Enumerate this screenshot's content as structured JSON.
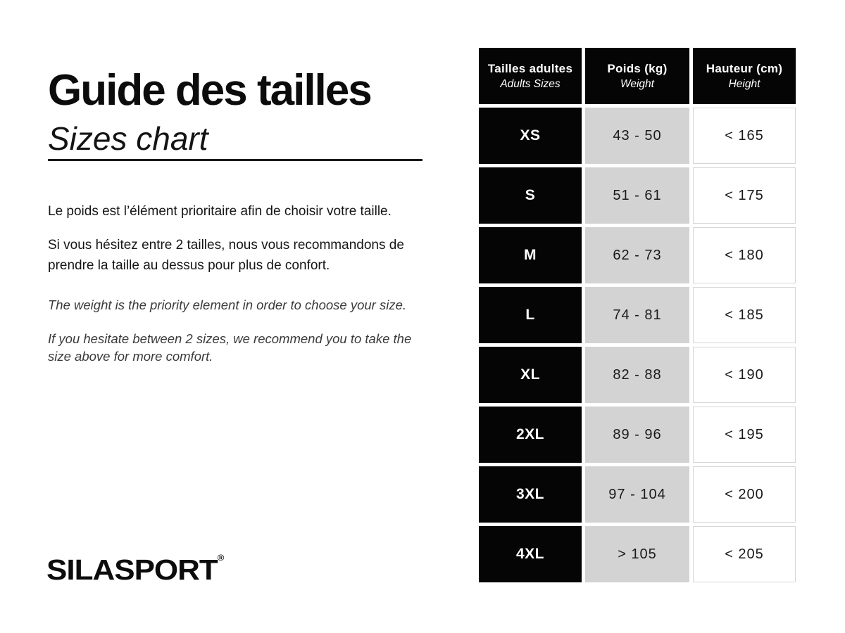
{
  "page": {
    "title_fr": "Guide des tailles",
    "title_en": "Sizes chart",
    "paragraph_fr_1": "Le poids est l’élément prioritaire afin de choisir votre taille.",
    "paragraph_fr_2": "Si vous hésitez entre 2 tailles, nous vous recommandons de prendre la taille au dessus pour plus de confort.",
    "paragraph_en_1": "The weight is the priority element in order to choose your size.",
    "paragraph_en_2": "If you hesitate between 2 sizes, we recommend you to take the size above for more comfort.",
    "logo_text": "SILASPORT",
    "logo_mark": "®"
  },
  "colors": {
    "cell_black": "#050505",
    "cell_gray": "#d3d3d3",
    "cell_border": "#d6d6d6",
    "text_dark": "#111111"
  },
  "table": {
    "headers": [
      {
        "fr": "Tailles adultes",
        "en": "Adults Sizes"
      },
      {
        "fr": "Poids (kg)",
        "en": "Weight"
      },
      {
        "fr": "Hauteur (cm)",
        "en": "Height"
      }
    ],
    "rows": [
      {
        "size": "XS",
        "weight": "43 - 50",
        "height": "< 165"
      },
      {
        "size": "S",
        "weight": "51 - 61",
        "height": "< 175"
      },
      {
        "size": "M",
        "weight": "62 - 73",
        "height": "< 180"
      },
      {
        "size": "L",
        "weight": "74 - 81",
        "height": "< 185"
      },
      {
        "size": "XL",
        "weight": "82 - 88",
        "height": "< 190"
      },
      {
        "size": "2XL",
        "weight": "89 - 96",
        "height": "< 195"
      },
      {
        "size": "3XL",
        "weight": "97 - 104",
        "height": "< 200"
      },
      {
        "size": "4XL",
        "weight": "> 105",
        "height": "< 205"
      }
    ]
  }
}
